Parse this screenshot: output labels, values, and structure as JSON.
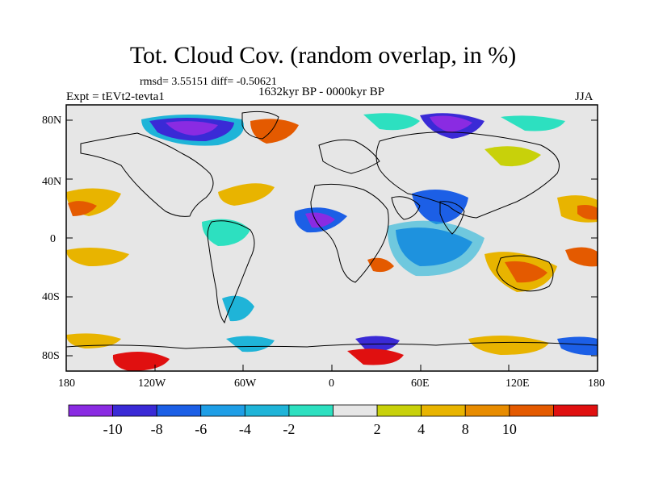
{
  "title": "Tot. Cloud Cov. (random overlap, in %)",
  "stats": "rmsd= 3.55151 diff= -0.50621",
  "period": "1632kyr BP - 0000kyr BP",
  "experiment": "Expt = tEVt2-tevta1",
  "season": "JJA",
  "y_ticks": [
    "80N",
    "40N",
    "0",
    "40S",
    "80S"
  ],
  "x_ticks": [
    "180",
    "120W",
    "60W",
    "0",
    "60E",
    "120E",
    "180"
  ],
  "colorbar": {
    "colors": [
      "#8a2be2",
      "#3a2ad6",
      "#1c5fe6",
      "#1e9ee6",
      "#1fb4d8",
      "#2de0c0",
      "#e6e6e6",
      "#c8d10a",
      "#e8b400",
      "#e88c00",
      "#e45a00",
      "#e01010"
    ],
    "labels": [
      "-10",
      "-8",
      "-6",
      "-4",
      "-2",
      "2",
      "4",
      "8",
      "10"
    ]
  }
}
